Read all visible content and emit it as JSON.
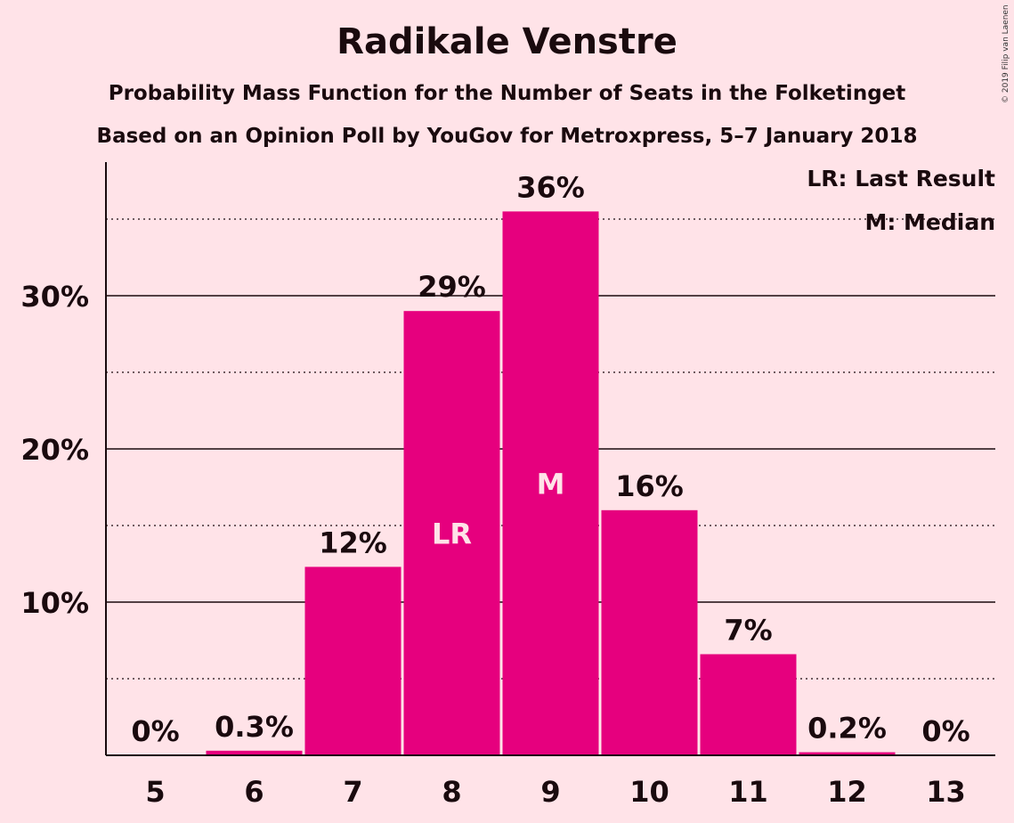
{
  "title": "Radikale Venstre",
  "subtitle1": "Probability Mass Function for the Number of Seats in the Folketinget",
  "subtitle2": "Based on an Opinion Poll by YouGov for Metroxpress, 5–7 January 2018",
  "copyright": "© 2019 Filip van Laenen",
  "legend": {
    "last_result": "LR: Last Result",
    "median": "M: Median"
  },
  "colors": {
    "bar": "#E6007E",
    "background": "#FFE3E8",
    "text": "#1a0a0e"
  },
  "chart_data": {
    "type": "bar",
    "categories": [
      "5",
      "6",
      "7",
      "8",
      "9",
      "10",
      "11",
      "12",
      "13"
    ],
    "values": [
      0,
      0.3,
      12.3,
      29.0,
      35.5,
      16.0,
      6.6,
      0.2,
      0
    ],
    "data_labels": [
      "0%",
      "0.3%",
      "12%",
      "29%",
      "36%",
      "16%",
      "7%",
      "0.2%",
      "0%"
    ],
    "bar_markers": {
      "8": "LR",
      "9": "M"
    },
    "ylim": [
      0,
      38
    ],
    "yticks": [
      10,
      20,
      30
    ],
    "ytick_labels": [
      "10%",
      "20%",
      "30%"
    ],
    "minor_gridlines": [
      5,
      15,
      25,
      35
    ],
    "grid": true,
    "legend_position": "top-right"
  }
}
